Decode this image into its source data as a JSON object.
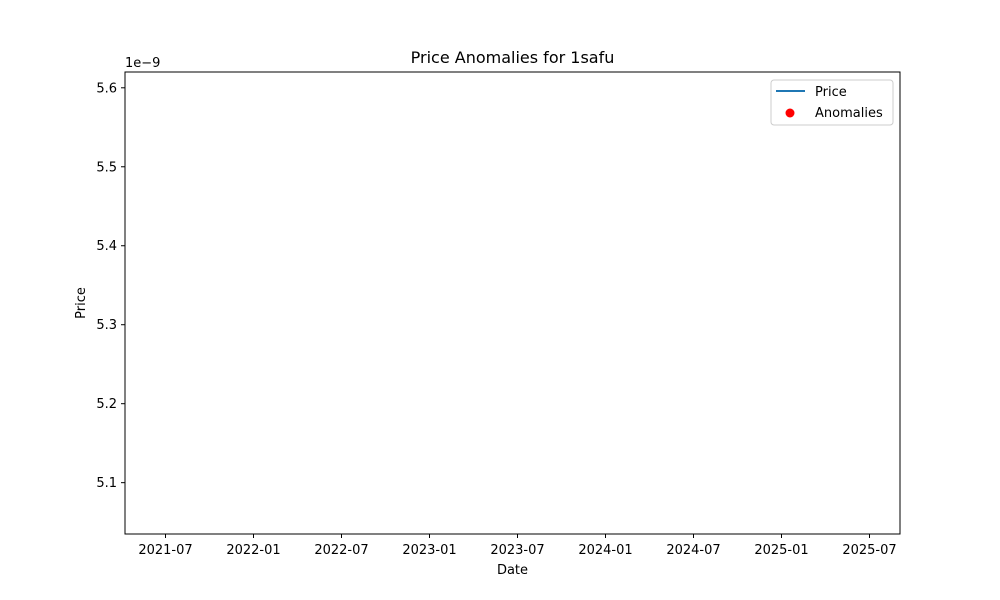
{
  "chart_data": {
    "type": "line",
    "title": "Price Anomalies for 1safu",
    "xlabel": "Date",
    "ylabel": "Price",
    "y_offset_label": "1e−9",
    "x_tick_labels": [
      "2021-07",
      "2022-01",
      "2022-07",
      "2023-01",
      "2023-07",
      "2024-01",
      "2024-07",
      "2025-01",
      "2025-07"
    ],
    "y_tick_labels": [
      "5.1",
      "5.2",
      "5.3",
      "5.4",
      "5.5",
      "5.6"
    ],
    "ylim": [
      5.035,
      5.62
    ],
    "grid": false,
    "legend_position": "top-right",
    "series": [
      {
        "name": "Price",
        "kind": "line",
        "color": "#1f77b4",
        "points": []
      },
      {
        "name": "Anomalies",
        "kind": "scatter",
        "color": "#ff0000",
        "points": []
      }
    ]
  }
}
